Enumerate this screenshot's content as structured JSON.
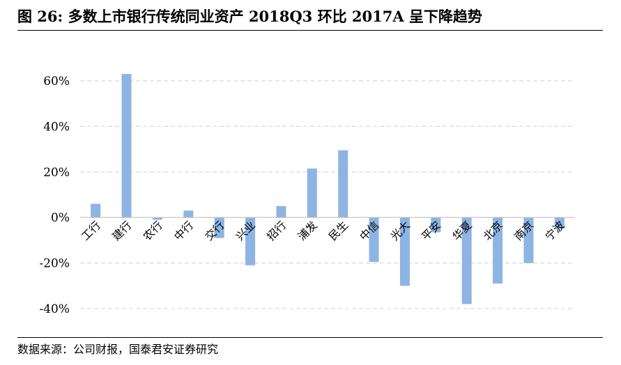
{
  "header": {
    "title": "图 26: 多数上市银行传统同业资产 2018Q3 环比 2017A 呈下降趋势"
  },
  "footer": {
    "source": "数据来源：公司财报，国泰君安证券研究"
  },
  "colors": {
    "bar": "#8EB4E3",
    "grid": "#D9D9D9",
    "axis": "#BFBFBF"
  },
  "chart_data": {
    "type": "bar",
    "title": "",
    "xlabel": "",
    "ylabel": "",
    "ylim": [
      -40,
      60
    ],
    "yticks": [
      -40,
      -20,
      0,
      20,
      40,
      60
    ],
    "ytick_labels": [
      "-40%",
      "-20%",
      "0%",
      "20%",
      "40%",
      "60%"
    ],
    "grid": true,
    "legend": "none",
    "categories": [
      "工行",
      "建行",
      "农行",
      "中行",
      "交行",
      "兴业",
      "招行",
      "浦发",
      "民生",
      "中信",
      "光大",
      "平安",
      "华夏",
      "北京",
      "南京",
      "宁波"
    ],
    "values": [
      6,
      63,
      -1,
      3,
      -9,
      -21,
      5,
      21.5,
      29.5,
      -19.5,
      -30,
      -6.5,
      -38,
      -29,
      -20,
      -5
    ]
  }
}
